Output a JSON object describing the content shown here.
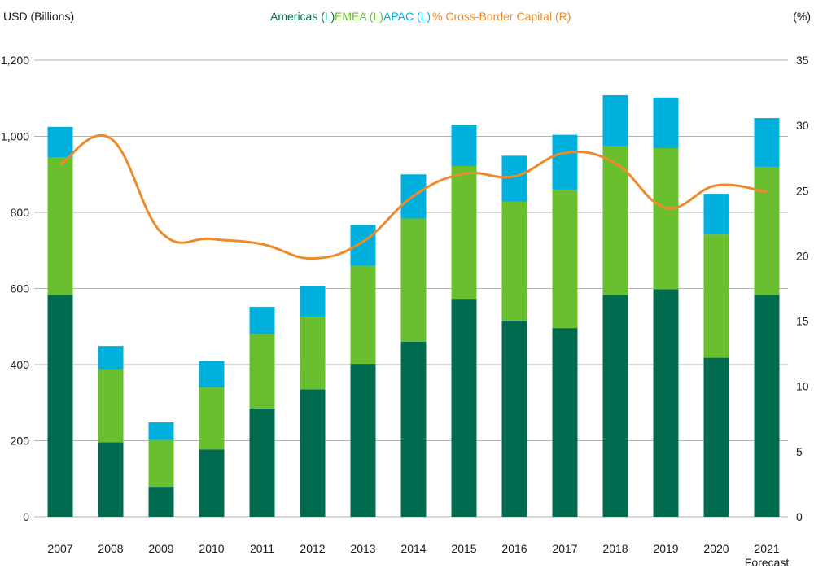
{
  "chart_data": {
    "type": "bar",
    "stacked": true,
    "categories": [
      "2007",
      "2008",
      "2009",
      "2010",
      "2011",
      "2012",
      "2013",
      "2014",
      "2015",
      "2016",
      "2017",
      "2018",
      "2019",
      "2020",
      "2021"
    ],
    "category_sublabels": {
      "2021": "Forecast"
    },
    "series": [
      {
        "name": "Americas (L)",
        "axis": "left",
        "color": "#006b4f",
        "values": [
          583,
          196,
          79,
          177,
          285,
          335,
          402,
          460,
          573,
          516,
          496,
          583,
          598,
          418,
          583
        ]
      },
      {
        "name": "EMEA (L)",
        "axis": "left",
        "color": "#6abf2e",
        "values": [
          361,
          192,
          123,
          163,
          196,
          191,
          258,
          324,
          349,
          312,
          364,
          391,
          371,
          324,
          337
        ]
      },
      {
        "name": "APAC (L)",
        "axis": "left",
        "color": "#00b0dc",
        "values": [
          81,
          61,
          46,
          69,
          71,
          81,
          107,
          116,
          109,
          121,
          144,
          134,
          133,
          107,
          128
        ]
      },
      {
        "name": "% Cross-Border Capital (R)",
        "axis": "right",
        "type": "line",
        "color": "#ef8a2a",
        "values": [
          27.0,
          29.0,
          21.8,
          21.3,
          20.9,
          19.8,
          21.1,
          24.6,
          26.3,
          26.1,
          27.9,
          27.1,
          23.7,
          25.4,
          24.9
        ]
      }
    ],
    "ylabel_left": "USD (Billions)",
    "ylabel_right": "(%)",
    "ylim_left": [
      0,
      1200
    ],
    "ylim_right": [
      0,
      35
    ],
    "yticks_left": [
      "0",
      "200",
      "400",
      "600",
      "800",
      "1,000",
      "1,200"
    ],
    "yticks_right": [
      "0",
      "5",
      "10",
      "15",
      "20",
      "25",
      "30",
      "35"
    ],
    "grid": true,
    "legend_position": "top-center"
  }
}
